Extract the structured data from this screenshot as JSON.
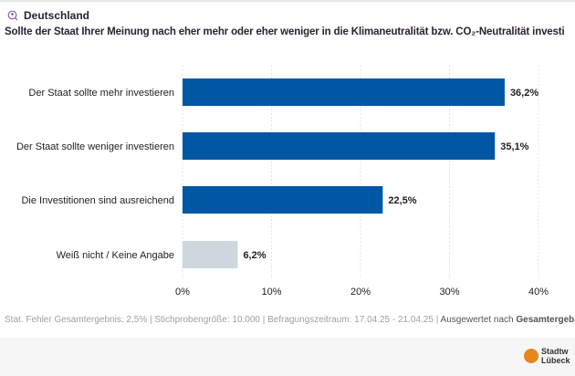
{
  "header": {
    "region": "Deutschland",
    "region_icon": "search-person-icon",
    "question": "Sollte der Staat Ihrer Meinung nach eher mehr oder eher weniger in die Klimaneutralität bzw. CO₂-Neutralität investi"
  },
  "chart_data": {
    "type": "bar",
    "orientation": "horizontal",
    "categories": [
      "Der Staat sollte mehr investieren",
      "Der Staat sollte weniger investieren",
      "Die Investitionen sind ausreichend",
      "Weiß nicht / Keine Angabe"
    ],
    "values": [
      36.2,
      35.1,
      22.5,
      6.2
    ],
    "value_labels": [
      "36,2%",
      "35,1%",
      "22,5%",
      "6,2%"
    ],
    "colors": [
      "#0057a3",
      "#0057a3",
      "#0057a3",
      "#cfd7de"
    ],
    "xlim": [
      0,
      40
    ],
    "ticks": [
      0,
      10,
      20,
      30,
      40
    ],
    "tick_labels": [
      "0%",
      "10%",
      "20%",
      "30%",
      "40%"
    ],
    "grid": true
  },
  "footer": {
    "stats": "Stat. Fehler Gesamtergebnis: 2,5% | Stichprobengröße: 10.000 | Befragungszeitraum: 17.04.25 - 21.04.25 | ",
    "evaluated": "Ausgewertet nach ",
    "evaluated_bold": "Gesamtergebnis"
  },
  "logo": {
    "line1": "Stadtw",
    "line2": "Lübeck"
  }
}
